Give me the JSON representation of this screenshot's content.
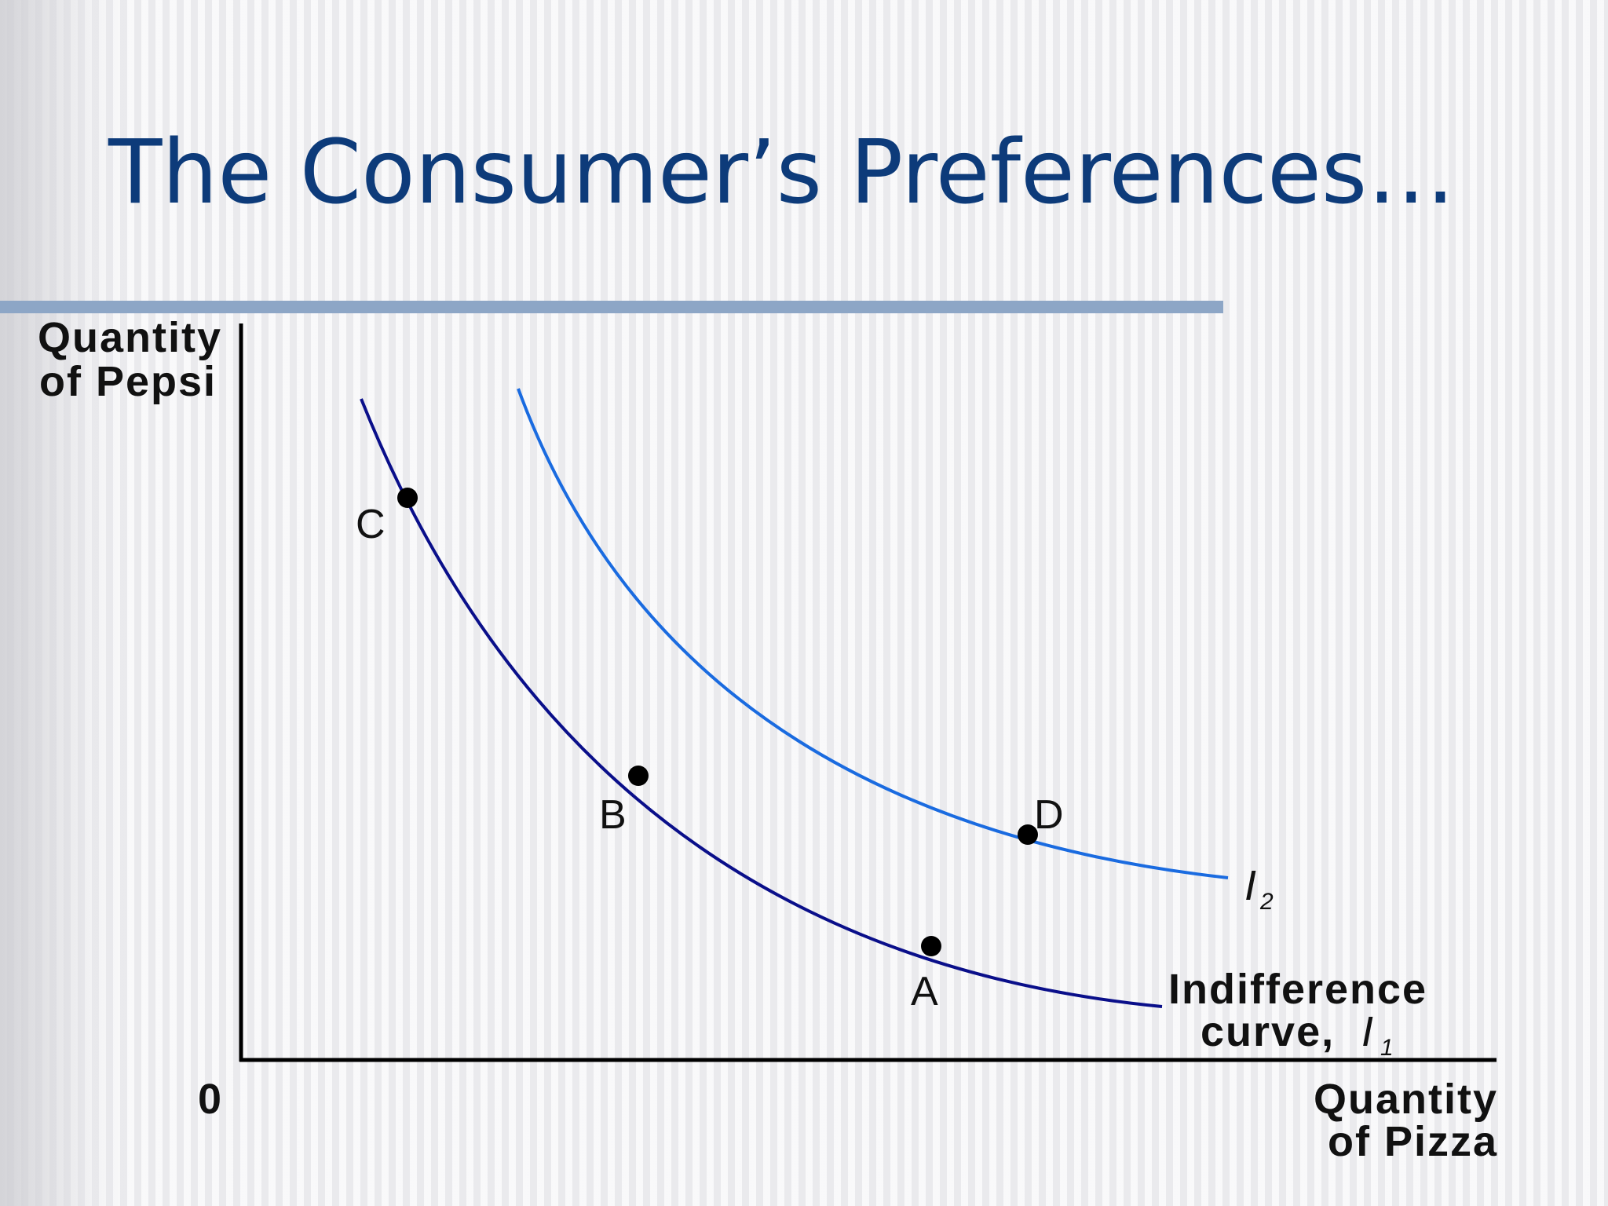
{
  "title": "The Consumer’s Preferences…",
  "colors": {
    "title": "#0d3b7a",
    "rule": "#8da6c6",
    "curve_i1": "#0a0f8a",
    "curve_i2": "#1a6be0",
    "points": "#000000"
  },
  "axes": {
    "y_label_line1": "Quantity",
    "y_label_line2": "of Pepsi",
    "x_label_line1": "Quantity",
    "x_label_line2": "of Pizza",
    "origin": "0"
  },
  "curves": {
    "i1_label_line1": "Indifference",
    "i1_label_line2": "curve,",
    "i1_symbol": "I",
    "i1_subscript": "1",
    "i2_symbol": "I",
    "i2_subscript": "2"
  },
  "points": {
    "a": "A",
    "b": "B",
    "c": "C",
    "d": "D"
  }
}
